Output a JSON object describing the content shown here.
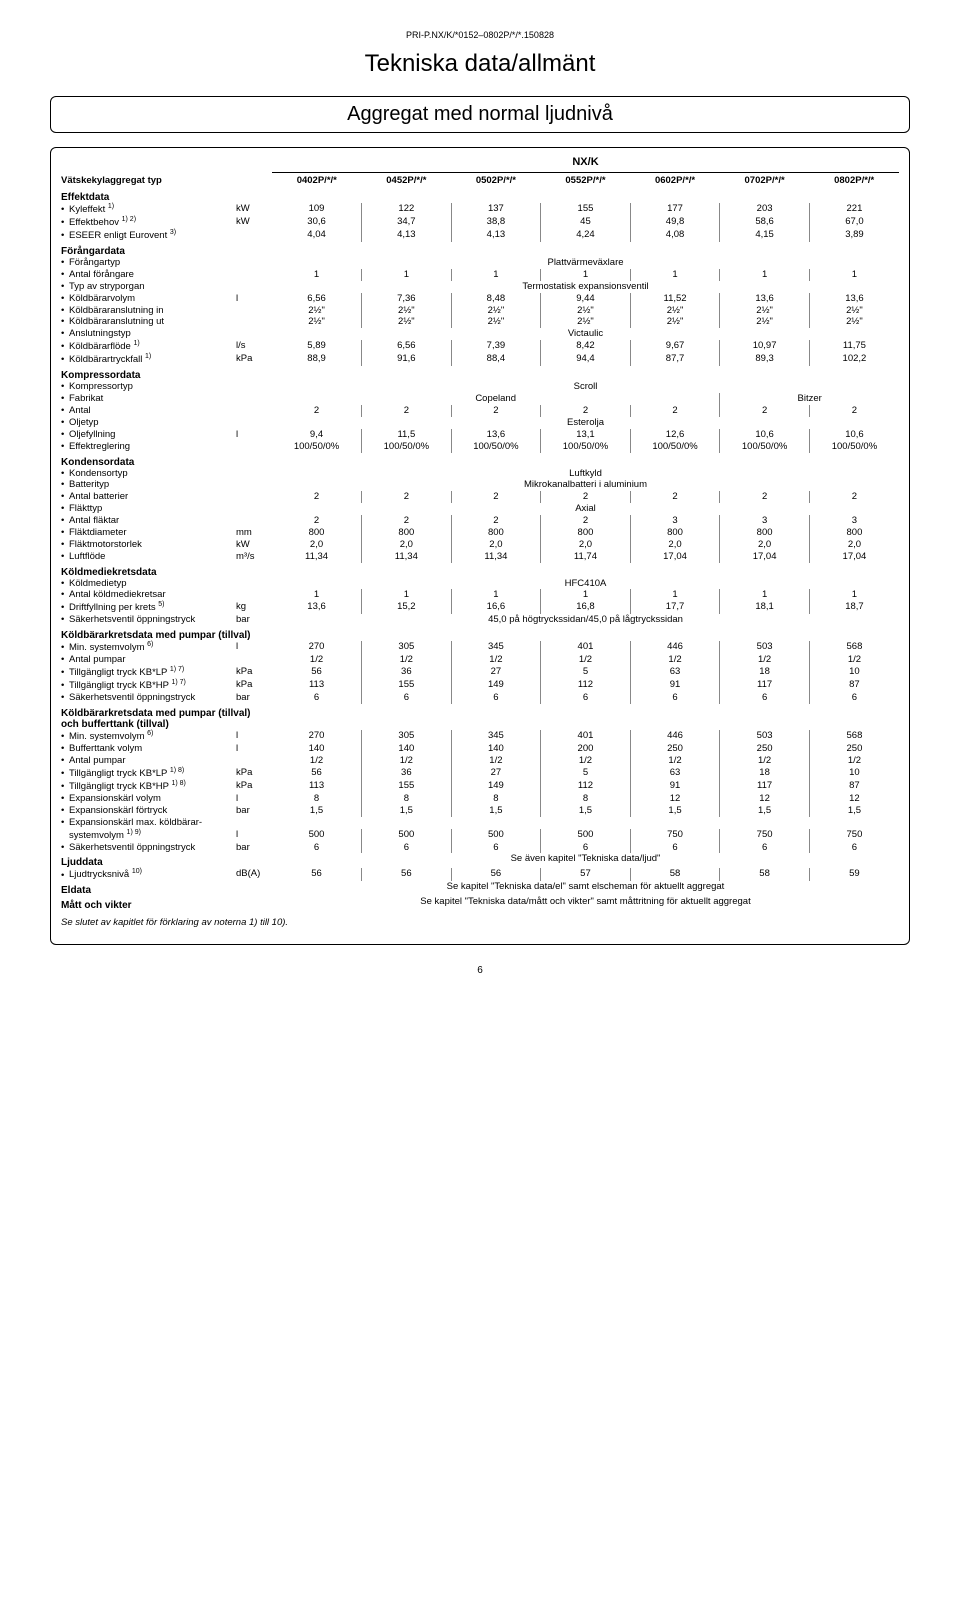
{
  "doc_id": "PRI-P.NX/K/*0152–0802P/*/*.150828",
  "title": "Tekniska data/allmänt",
  "subtitle": "Aggregat med normal ljudnivå",
  "series_label": "NX/K",
  "unit_type_label": "Vätskekylaggregat typ",
  "models": [
    "0402P/*/*",
    "0452P/*/*",
    "0502P/*/*",
    "0552P/*/*",
    "0602P/*/*",
    "0702P/*/*",
    "0802P/*/*"
  ],
  "sections": [
    {
      "head": "Effektdata",
      "rows": [
        {
          "label": "Kyleffekt",
          "sup": "1)",
          "unit": "kW",
          "vals": [
            "109",
            "122",
            "137",
            "155",
            "177",
            "203",
            "221"
          ]
        },
        {
          "label": "Effektbehov",
          "sup": "1) 2)",
          "unit": "kW",
          "vals": [
            "30,6",
            "34,7",
            "38,8",
            "45",
            "49,8",
            "58,6",
            "67,0"
          ]
        },
        {
          "label": "ESEER enligt Eurovent",
          "sup": "3)",
          "unit": "",
          "vals": [
            "4,04",
            "4,13",
            "4,13",
            "4,24",
            "4,08",
            "4,15",
            "3,89"
          ]
        }
      ]
    },
    {
      "head": "Förångardata",
      "rows": [
        {
          "label": "Förångartyp",
          "unit": "",
          "span": "Plattvärmeväxlare"
        },
        {
          "label": "Antal förångare",
          "unit": "",
          "vals": [
            "1",
            "1",
            "1",
            "1",
            "1",
            "1",
            "1"
          ]
        },
        {
          "label": "Typ av stryporgan",
          "unit": "",
          "span": "Termostatisk expansionsventil"
        },
        {
          "label": "Köldbärarvolym",
          "unit": "l",
          "vals": [
            "6,56",
            "7,36",
            "8,48",
            "9,44",
            "11,52",
            "13,6",
            "13,6"
          ]
        },
        {
          "label": "Köldbäraranslutning in",
          "unit": "",
          "vals": [
            "2½\"",
            "2½\"",
            "2½\"",
            "2½\"",
            "2½\"",
            "2½\"",
            "2½\""
          ]
        },
        {
          "label": "Köldbäraranslutning ut",
          "unit": "",
          "vals": [
            "2½\"",
            "2½\"",
            "2½\"",
            "2½\"",
            "2½\"",
            "2½\"",
            "2½\""
          ]
        },
        {
          "label": "Anslutningstyp",
          "unit": "",
          "span": "Victaulic"
        },
        {
          "label": "Köldbärarflöde",
          "sup": "1)",
          "unit": "l/s",
          "vals": [
            "5,89",
            "6,56",
            "7,39",
            "8,42",
            "9,67",
            "10,97",
            "11,75"
          ]
        },
        {
          "label": "Köldbärartryckfall",
          "sup": "1)",
          "unit": "kPa",
          "vals": [
            "88,9",
            "91,6",
            "88,4",
            "94,4",
            "87,7",
            "89,3",
            "102,2"
          ]
        }
      ]
    },
    {
      "head": "Kompressordata",
      "rows": [
        {
          "label": "Kompressortyp",
          "unit": "",
          "span": "Scroll"
        },
        {
          "label": "Fabrikat",
          "unit": "",
          "custom": "fabrikat"
        },
        {
          "label": "Antal",
          "unit": "",
          "vals": [
            "2",
            "2",
            "2",
            "2",
            "2",
            "2",
            "2"
          ]
        },
        {
          "label": "Oljetyp",
          "unit": "",
          "span": "Esterolja"
        },
        {
          "label": "Oljefyllning",
          "unit": "l",
          "vals": [
            "9,4",
            "11,5",
            "13,6",
            "13,1",
            "12,6",
            "10,6",
            "10,6"
          ]
        },
        {
          "label": "Effektreglering",
          "unit": "",
          "vals": [
            "100/50/0%",
            "100/50/0%",
            "100/50/0%",
            "100/50/0%",
            "100/50/0%",
            "100/50/0%",
            "100/50/0%"
          ]
        }
      ]
    },
    {
      "head": "Kondensordata",
      "rows": [
        {
          "label": "Kondensortyp",
          "unit": "",
          "span": "Luftkyld"
        },
        {
          "label": "Batterityp",
          "unit": "",
          "span": "Mikrokanalbatteri i aluminium"
        },
        {
          "label": "Antal batterier",
          "unit": "",
          "vals": [
            "2",
            "2",
            "2",
            "2",
            "2",
            "2",
            "2"
          ]
        },
        {
          "label": "Fläkttyp",
          "unit": "",
          "span": "Axial"
        },
        {
          "label": "Antal fläktar",
          "unit": "",
          "vals": [
            "2",
            "2",
            "2",
            "2",
            "3",
            "3",
            "3"
          ]
        },
        {
          "label": "Fläktdiameter",
          "unit": "mm",
          "vals": [
            "800",
            "800",
            "800",
            "800",
            "800",
            "800",
            "800"
          ]
        },
        {
          "label": "Fläktmotorstorlek",
          "unit": "kW",
          "vals": [
            "2,0",
            "2,0",
            "2,0",
            "2,0",
            "2,0",
            "2,0",
            "2,0"
          ]
        },
        {
          "label": "Luftflöde",
          "unit": "m³/s",
          "vals": [
            "11,34",
            "11,34",
            "11,34",
            "11,74",
            "17,04",
            "17,04",
            "17,04"
          ]
        }
      ]
    },
    {
      "head": "Köldmediekretsdata",
      "rows": [
        {
          "label": "Köldmedietyp",
          "unit": "",
          "span": "HFC410A"
        },
        {
          "label": "Antal köldmediekretsar",
          "unit": "",
          "vals": [
            "1",
            "1",
            "1",
            "1",
            "1",
            "1",
            "1"
          ]
        },
        {
          "label": "Driftfyllning per krets",
          "sup": "5)",
          "unit": "kg",
          "vals": [
            "13,6",
            "15,2",
            "16,6",
            "16,8",
            "17,7",
            "18,1",
            "18,7"
          ]
        },
        {
          "label": "Säkerhetsventil öppningstryck",
          "unit": "bar",
          "span": "45,0 på högtryckssidan/45,0 på lågtryckssidan"
        }
      ]
    },
    {
      "head": "Köldbärarkretsdata med pumpar (tillval)",
      "rows": [
        {
          "label": "Min. systemvolym",
          "sup": "6)",
          "unit": "l",
          "vals": [
            "270",
            "305",
            "345",
            "401",
            "446",
            "503",
            "568"
          ]
        },
        {
          "label": "Antal pumpar",
          "unit": "",
          "vals": [
            "1/2",
            "1/2",
            "1/2",
            "1/2",
            "1/2",
            "1/2",
            "1/2"
          ]
        },
        {
          "label": "Tillgängligt tryck KB*LP",
          "sup": "1) 7)",
          "unit": "kPa",
          "vals": [
            "56",
            "36",
            "27",
            "5",
            "63",
            "18",
            "10"
          ]
        },
        {
          "label": "Tillgängligt tryck KB*HP",
          "sup": "1) 7)",
          "unit": "kPa",
          "vals": [
            "113",
            "155",
            "149",
            "112",
            "91",
            "117",
            "87"
          ]
        },
        {
          "label": "Säkerhetsventil öppningstryck",
          "unit": "bar",
          "vals": [
            "6",
            "6",
            "6",
            "6",
            "6",
            "6",
            "6"
          ]
        }
      ]
    },
    {
      "head": "Köldbärarkretsdata med pumpar (tillval) och bufferttank (tillval)",
      "rows": [
        {
          "label": "Min. systemvolym",
          "sup": "6)",
          "unit": "l",
          "vals": [
            "270",
            "305",
            "345",
            "401",
            "446",
            "503",
            "568"
          ]
        },
        {
          "label": "Bufferttank volym",
          "unit": "l",
          "vals": [
            "140",
            "140",
            "140",
            "200",
            "250",
            "250",
            "250"
          ]
        },
        {
          "label": "Antal pumpar",
          "unit": "",
          "vals": [
            "1/2",
            "1/2",
            "1/2",
            "1/2",
            "1/2",
            "1/2",
            "1/2"
          ]
        },
        {
          "label": "Tillgängligt tryck KB*LP",
          "sup": "1) 8)",
          "unit": "kPa",
          "vals": [
            "56",
            "36",
            "27",
            "5",
            "63",
            "18",
            "10"
          ]
        },
        {
          "label": "Tillgängligt tryck KB*HP",
          "sup": "1) 8)",
          "unit": "kPa",
          "vals": [
            "113",
            "155",
            "149",
            "112",
            "91",
            "117",
            "87"
          ]
        },
        {
          "label": "Expansionskärl volym",
          "unit": "l",
          "vals": [
            "8",
            "8",
            "8",
            "8",
            "12",
            "12",
            "12"
          ]
        },
        {
          "label": "Expansionskärl förtryck",
          "unit": "bar",
          "vals": [
            "1,5",
            "1,5",
            "1,5",
            "1,5",
            "1,5",
            "1,5",
            "1,5"
          ]
        },
        {
          "label": "Expansionskärl max. köldbärar-",
          "unit": "",
          "nowrap": true
        },
        {
          "label": "systemvolym",
          "sup": "1) 9)",
          "unit": "l",
          "vals": [
            "500",
            "500",
            "500",
            "500",
            "750",
            "750",
            "750"
          ],
          "indent": true
        },
        {
          "label": "Säkerhetsventil öppningstryck",
          "unit": "bar",
          "vals": [
            "6",
            "6",
            "6",
            "6",
            "6",
            "6",
            "6"
          ]
        }
      ]
    },
    {
      "head": "Ljuddata",
      "headspan": "Se även kapitel \"Tekniska data/ljud\"",
      "rows": [
        {
          "label": "Ljudtrycksnivå",
          "sup": "10)",
          "unit": "dB(A)",
          "vals": [
            "56",
            "56",
            "56",
            "57",
            "58",
            "58",
            "59"
          ]
        }
      ]
    },
    {
      "head": "Eldata",
      "headspan": "Se kapitel \"Tekniska data/el\" samt elscheman för aktuellt aggregat",
      "rows": []
    },
    {
      "head": "Mått och vikter",
      "headspan": "Se kapitel \"Tekniska data/mått och vikter\" samt måttritning för aktuellt aggregat",
      "rows": []
    }
  ],
  "fabrikat": {
    "left": "Copeland",
    "right": "Bitzer",
    "split_after": 5
  },
  "footnote": "Se slutet av kapitlet för förklaring av noterna 1) till 10).",
  "page_number": "6"
}
